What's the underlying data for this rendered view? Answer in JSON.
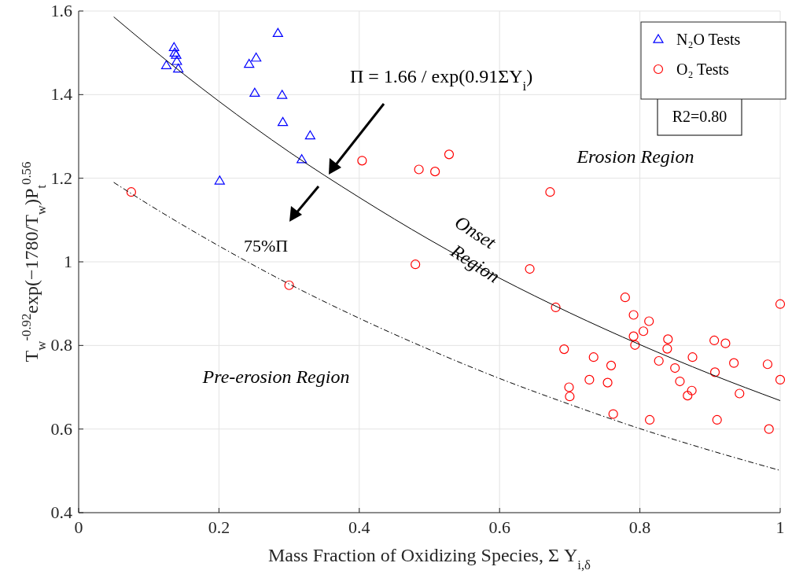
{
  "chart_data": {
    "type": "scatter",
    "xlabel": "Mass Fraction of Oxidizing Species, Σ Y$_{i,δ}$",
    "ylabel": "T$_{w}$$^{-0.92}$exp(−1780/T$_{w}$)P$_{t}$$^{0.56}$",
    "xlim": [
      0,
      1
    ],
    "ylim": [
      0.4,
      1.6
    ],
    "xticks": [
      0,
      0.2,
      0.4,
      0.6,
      0.8,
      1
    ],
    "yticks": [
      0.4,
      0.6,
      0.8,
      1,
      1.2,
      1.4,
      1.6
    ],
    "grid": true,
    "legend": "top right",
    "series": [
      {
        "name": "N₂O Tests",
        "color": "#0000ff",
        "marker": "triangle",
        "x": [
          0.125,
          0.136,
          0.137,
          0.139,
          0.14,
          0.142,
          0.284,
          0.253,
          0.243,
          0.251,
          0.29,
          0.291,
          0.33,
          0.318,
          0.201
        ],
        "values": [
          1.47,
          1.513,
          1.5,
          1.495,
          1.48,
          1.462,
          1.547,
          1.488,
          1.473,
          1.404,
          1.399,
          1.334,
          1.302,
          1.245,
          1.194
        ]
      },
      {
        "name": "O₂ Tests",
        "color": "#ff0000",
        "marker": "circle",
        "x": [
          0.075,
          0.3,
          0.404,
          0.485,
          0.508,
          0.528,
          0.672,
          0.48,
          0.643,
          0.779,
          0.68,
          0.791,
          0.813,
          0.805,
          0.791,
          0.793,
          0.84,
          0.839,
          0.906,
          0.922,
          0.692,
          0.734,
          0.875,
          0.827,
          0.759,
          0.85,
          0.907,
          0.934,
          0.982,
          1.0,
          1.0,
          0.728,
          0.754,
          0.857,
          0.874,
          0.868,
          0.699,
          0.7,
          0.942,
          0.762,
          0.814,
          0.91,
          0.984
        ],
        "values": [
          1.167,
          0.944,
          1.242,
          1.221,
          1.216,
          1.257,
          1.167,
          0.994,
          0.983,
          0.915,
          0.891,
          0.873,
          0.858,
          0.834,
          0.822,
          0.801,
          0.815,
          0.792,
          0.812,
          0.805,
          0.791,
          0.772,
          0.772,
          0.763,
          0.752,
          0.746,
          0.736,
          0.758,
          0.755,
          0.718,
          0.899,
          0.718,
          0.711,
          0.714,
          0.692,
          0.68,
          0.7,
          0.678,
          0.685,
          0.636,
          0.622,
          0.622,
          0.6
        ]
      },
      {
        "type": "line",
        "color": "#000000",
        "line_style": "solid",
        "marker": "none",
        "x": [
          0.05,
          0.1,
          0.2,
          0.3,
          0.4,
          0.5,
          0.6,
          0.7,
          0.8,
          0.9,
          1.0
        ],
        "values": [
          1.586,
          1.516,
          1.384,
          1.263,
          1.154,
          1.053,
          0.961,
          0.878,
          0.802,
          0.732,
          0.668
        ]
      },
      {
        "type": "line",
        "color": "#000000",
        "line_style": "dashed",
        "marker": "none",
        "x": [
          0.05,
          0.1,
          0.2,
          0.3,
          0.4,
          0.5,
          0.6,
          0.7,
          0.8,
          0.9,
          1.0
        ],
        "values": [
          1.19,
          1.137,
          1.038,
          0.947,
          0.865,
          0.79,
          0.721,
          0.659,
          0.601,
          0.549,
          0.501
        ]
      }
    ],
    "annotations": [
      "Π = 1.66 / exp(0.91ΣY$_{i}$)",
      "75%Π",
      "Erosion Region",
      "Onset",
      "Region",
      "Pre-erosion Region",
      "R2=0.80"
    ]
  }
}
